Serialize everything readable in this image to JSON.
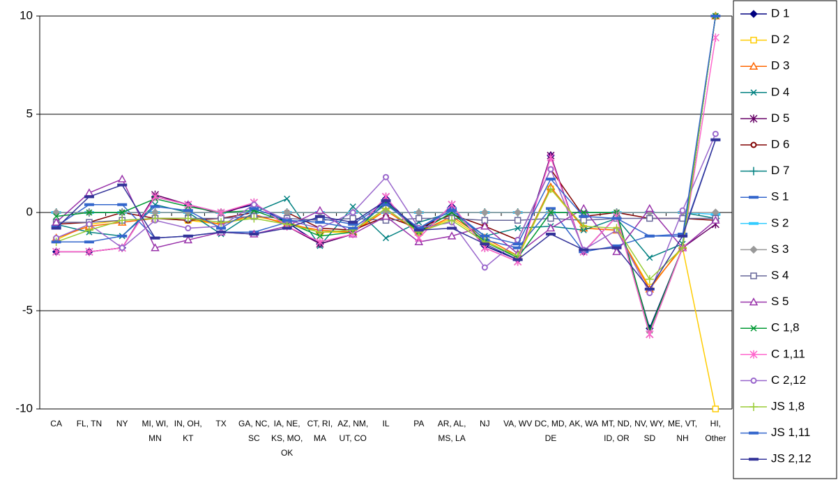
{
  "chart_data": {
    "type": "line",
    "categories": [
      "CA",
      "FL, TN",
      "NY",
      "MI, WI, MN",
      "IN, OH, KT",
      "TX",
      "GA, NC, SC",
      "IA, NE, KS, MO, OK",
      "CT, RI, MA",
      "AZ, NM, UT, CO",
      "IL",
      "PA",
      "AR, AL, MS, LA",
      "NJ",
      "VA, WV",
      "DC, MD, DE",
      "AK, WA",
      "MT, ND, ID, OR",
      "NV, WY, SD",
      "ME, VT, NH",
      "HI, Other"
    ],
    "ylim": [
      -10,
      10
    ],
    "yticks": [
      -10,
      -5,
      0,
      5,
      10
    ],
    "grid": true,
    "legend": "right",
    "series": [
      {
        "name": "D 1",
        "color": "#000080",
        "marker": "diamond",
        "values": [
          -2,
          -2,
          -1.8,
          0.8,
          0.4,
          0,
          0.4,
          -0.5,
          -1.6,
          -1.1,
          0.7,
          -1,
          0.3,
          -1.7,
          -2.4,
          2.9,
          -2,
          -0.2,
          -5.9,
          -1.8,
          10
        ]
      },
      {
        "name": "D 2",
        "color": "#FFCC00",
        "marker": "square",
        "values": [
          -1.4,
          -0.6,
          -0.4,
          -0.3,
          -0.4,
          -0.6,
          -0.2,
          -0.5,
          -1,
          -1,
          0.2,
          -1,
          -0.3,
          -1.4,
          -2.3,
          1.2,
          -0.8,
          -0.9,
          -3.8,
          -1.8,
          -10
        ]
      },
      {
        "name": "D 3",
        "color": "#FF6600",
        "marker": "triangle",
        "values": [
          -1.3,
          -0.7,
          -0.5,
          -0.3,
          -0.3,
          -0.6,
          -0.1,
          -0.6,
          -0.9,
          -1,
          0.1,
          -1,
          -0.2,
          -1.3,
          -2.2,
          1.3,
          -0.8,
          -0.9,
          -3.9,
          -1.7,
          10
        ]
      },
      {
        "name": "D 4",
        "color": "#008080",
        "marker": "x",
        "values": [
          -0.6,
          -1,
          -1.2,
          0.4,
          0,
          -1.1,
          0,
          0.7,
          -1.7,
          0.3,
          -1.3,
          -0.5,
          0,
          -1.2,
          -0.8,
          -0.7,
          -0.9,
          -0.3,
          -2.3,
          -1.6,
          10
        ]
      },
      {
        "name": "D 5",
        "color": "#660066",
        "marker": "star",
        "values": [
          -2,
          -2,
          -1.8,
          0.9,
          0.4,
          -0.1,
          0.5,
          -0.7,
          -1.6,
          -1.1,
          0.8,
          -1.3,
          0.4,
          -1.8,
          -2.5,
          2.9,
          -2,
          -0.2,
          -6.2,
          -1.8,
          -0.6
        ]
      },
      {
        "name": "D 6",
        "color": "#800000",
        "marker": "circle",
        "values": [
          -0.6,
          -0.5,
          0,
          -0.3,
          -0.4,
          -0.3,
          0,
          0,
          -0.8,
          -0.9,
          -0.2,
          -0.8,
          -0.1,
          -0.7,
          -1.4,
          2.2,
          -0.2,
          0,
          -0.3,
          -0.3,
          -0.4
        ]
      },
      {
        "name": "D 7",
        "color": "#008080",
        "marker": "plus",
        "values": [
          0,
          0,
          0,
          0,
          0,
          0,
          0,
          0,
          0,
          0,
          0,
          0,
          0,
          0,
          0,
          0,
          0,
          0,
          0,
          0,
          -0.3
        ]
      },
      {
        "name": "S 1",
        "color": "#3366CC",
        "marker": "dash",
        "values": [
          -0.7,
          0.4,
          0.4,
          -1.3,
          -1.2,
          -1,
          -1,
          -0.5,
          -0.3,
          -0.6,
          0.5,
          -0.8,
          0.2,
          -1.4,
          -1.8,
          0.2,
          -2,
          -1.7,
          -1.2,
          -1.1,
          3.7
        ]
      },
      {
        "name": "S 2",
        "color": "#33CCFF",
        "marker": "dash",
        "values": [
          0,
          0,
          0,
          0,
          0,
          0,
          0,
          0,
          0,
          0,
          0,
          0,
          0,
          0,
          0,
          0,
          0,
          0,
          0,
          0,
          -0.1
        ]
      },
      {
        "name": "S 3",
        "color": "#999999",
        "marker": "diamond",
        "values": [
          0,
          0,
          0,
          0,
          0,
          0,
          0,
          0,
          0,
          0,
          0,
          0,
          0,
          0,
          0,
          0,
          0,
          0,
          0,
          0,
          0
        ]
      },
      {
        "name": "S 4",
        "color": "#666699",
        "marker": "square",
        "values": [
          -0.5,
          -0.5,
          -0.4,
          -0.3,
          -0.3,
          -0.3,
          -0.2,
          -0.3,
          -0.4,
          -0.3,
          -0.4,
          -0.3,
          -0.3,
          -0.4,
          -0.4,
          -0.3,
          -0.4,
          -0.3,
          -0.3,
          -0.3,
          -0.3
        ]
      },
      {
        "name": "S 5",
        "color": "#9933AA",
        "marker": "triangle",
        "values": [
          -0.5,
          1,
          1.7,
          -1.8,
          -1.4,
          -1,
          -1.1,
          -0.7,
          0.1,
          -1.1,
          -0.2,
          -1.5,
          -1.2,
          -0.7,
          -2.1,
          -0.8,
          0.2,
          -2,
          0.2,
          -1.8,
          -0.4
        ]
      },
      {
        "name": "C 1,8",
        "color": "#009933",
        "marker": "x",
        "values": [
          -0.2,
          0,
          0,
          0.7,
          0.3,
          0,
          0.1,
          -0.5,
          -1.2,
          -1,
          0.5,
          -1,
          0,
          -1.5,
          -2.3,
          0,
          0,
          0,
          -6,
          -1.8,
          10
        ]
      },
      {
        "name": "C 1,11",
        "color": "#FF66CC",
        "marker": "star",
        "values": [
          -2,
          -2,
          -1.8,
          0.8,
          0.4,
          0,
          0.5,
          -0.7,
          -1.5,
          -1.1,
          0.8,
          -1.3,
          0.4,
          -1.8,
          -2.5,
          2.8,
          -2,
          -0.2,
          -6.2,
          -1.8,
          8.9
        ]
      },
      {
        "name": "C 2,12",
        "color": "#9966CC",
        "marker": "circle",
        "values": [
          -1.3,
          -0.6,
          -1.8,
          -0.4,
          -0.8,
          -0.7,
          0.4,
          -0.4,
          -0.8,
          0,
          1.8,
          -0.8,
          -0.5,
          -2.8,
          -1.4,
          2.2,
          -1.9,
          -0.9,
          -4.1,
          0.1,
          4
        ]
      },
      {
        "name": "JS 1,8",
        "color": "#99CC33",
        "marker": "plus",
        "values": [
          -1.5,
          -0.9,
          -0.4,
          -0.3,
          -0.3,
          -0.5,
          -0.3,
          -0.6,
          -1,
          -0.9,
          0.2,
          -1,
          -0.4,
          -1.5,
          -2.2,
          1.2,
          -0.7,
          -0.8,
          -3.4,
          -1.8,
          10
        ]
      },
      {
        "name": "JS 1,11",
        "color": "#3366CC",
        "marker": "dash",
        "values": [
          -1.5,
          -1.5,
          -1.2,
          0.3,
          0.1,
          -0.8,
          0.2,
          -0.4,
          -0.5,
          -0.8,
          0.4,
          -0.8,
          0.1,
          -1.2,
          -1.6,
          1.7,
          -0.2,
          -0.3,
          -1.2,
          -1.2,
          10
        ]
      },
      {
        "name": "JS 2,12",
        "color": "#333399",
        "marker": "dash",
        "values": [
          -0.8,
          0.8,
          1.4,
          -1.3,
          -1.2,
          -1,
          -1.1,
          -0.8,
          -0.2,
          -0.5,
          0.6,
          -0.9,
          -0.8,
          -1.6,
          -2.4,
          -1.1,
          -1.9,
          -1.8,
          -3.9,
          -1.2,
          3.7
        ]
      }
    ]
  }
}
